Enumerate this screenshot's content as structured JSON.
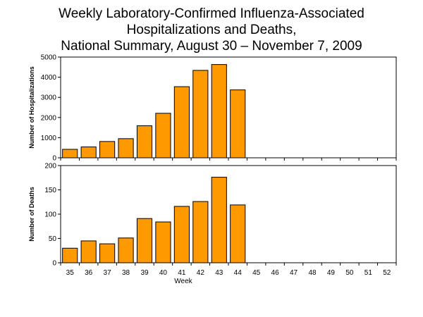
{
  "title_lines": [
    "Weekly Laboratory-Confirmed Influenza-Associated",
    "Hospitalizations and Deaths,",
    "National Summary, August 30 – November 7, 2009"
  ],
  "chart_data": [
    {
      "type": "bar",
      "ylabel": "Number of Hospitalizations",
      "ylim": [
        0,
        5000
      ],
      "yticks": [
        0,
        1000,
        2000,
        3000,
        4000,
        5000
      ],
      "categories": [
        "35",
        "36",
        "37",
        "38",
        "39",
        "40",
        "41",
        "42",
        "43",
        "44",
        "45",
        "46",
        "47",
        "48",
        "49",
        "50",
        "51",
        "52"
      ],
      "values": [
        420,
        540,
        810,
        950,
        1590,
        2210,
        3530,
        4340,
        4630,
        3370,
        null,
        null,
        null,
        null,
        null,
        null,
        null,
        null
      ],
      "bar_color": "#ff9900",
      "grid": false
    },
    {
      "type": "bar",
      "xlabel": "Week",
      "ylabel": "Number of Deaths",
      "ylim": [
        0,
        200
      ],
      "yticks": [
        0,
        50,
        100,
        150,
        200
      ],
      "categories": [
        "35",
        "36",
        "37",
        "38",
        "39",
        "40",
        "41",
        "42",
        "43",
        "44",
        "45",
        "46",
        "47",
        "48",
        "49",
        "50",
        "51",
        "52"
      ],
      "values": [
        30,
        45,
        39,
        51,
        91,
        84,
        116,
        126,
        176,
        119,
        null,
        null,
        null,
        null,
        null,
        null,
        null,
        null
      ],
      "bar_color": "#ff9900",
      "grid": false
    }
  ]
}
